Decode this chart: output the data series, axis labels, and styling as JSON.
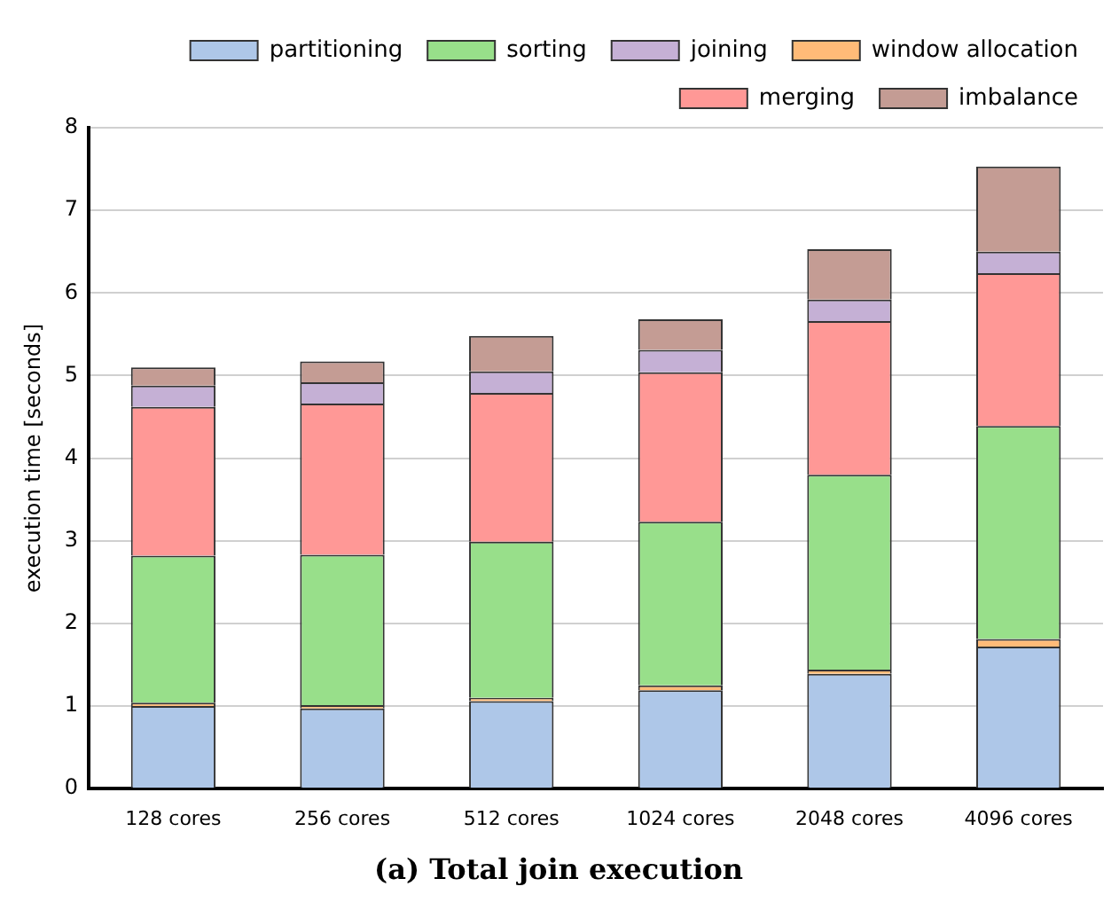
{
  "chart_data": {
    "type": "bar",
    "title": "(a) Total join execution",
    "ylabel": "execution time [seconds]",
    "categories": [
      "128 cores",
      "256 cores",
      "512 cores",
      "1024 cores",
      "2048 cores",
      "4096 cores"
    ],
    "stacked": true,
    "series": [
      {
        "name": "partitioning",
        "color": "#aec7e8",
        "values": [
          1.0,
          0.97,
          1.06,
          1.19,
          1.39,
          1.72
        ]
      },
      {
        "name": "window allocation",
        "color": "#ffbb78",
        "values": [
          0.04,
          0.04,
          0.04,
          0.06,
          0.05,
          0.09
        ]
      },
      {
        "name": "sorting",
        "color": "#98df8a",
        "values": [
          1.78,
          1.82,
          1.89,
          1.98,
          2.36,
          2.58
        ]
      },
      {
        "name": "merging",
        "color": "#ff9896",
        "values": [
          1.8,
          1.83,
          1.8,
          1.81,
          1.86,
          1.85
        ]
      },
      {
        "name": "joining",
        "color": "#c5b0d5",
        "values": [
          0.26,
          0.26,
          0.26,
          0.27,
          0.26,
          0.26
        ]
      },
      {
        "name": "imbalance",
        "color": "#c49c94",
        "values": [
          0.22,
          0.25,
          0.43,
          0.37,
          0.61,
          1.03
        ]
      }
    ],
    "ylim": [
      0,
      8
    ],
    "yticks": [
      0,
      1,
      2,
      3,
      4,
      5,
      6,
      7,
      8
    ],
    "grid": "y",
    "legend": "top right"
  }
}
